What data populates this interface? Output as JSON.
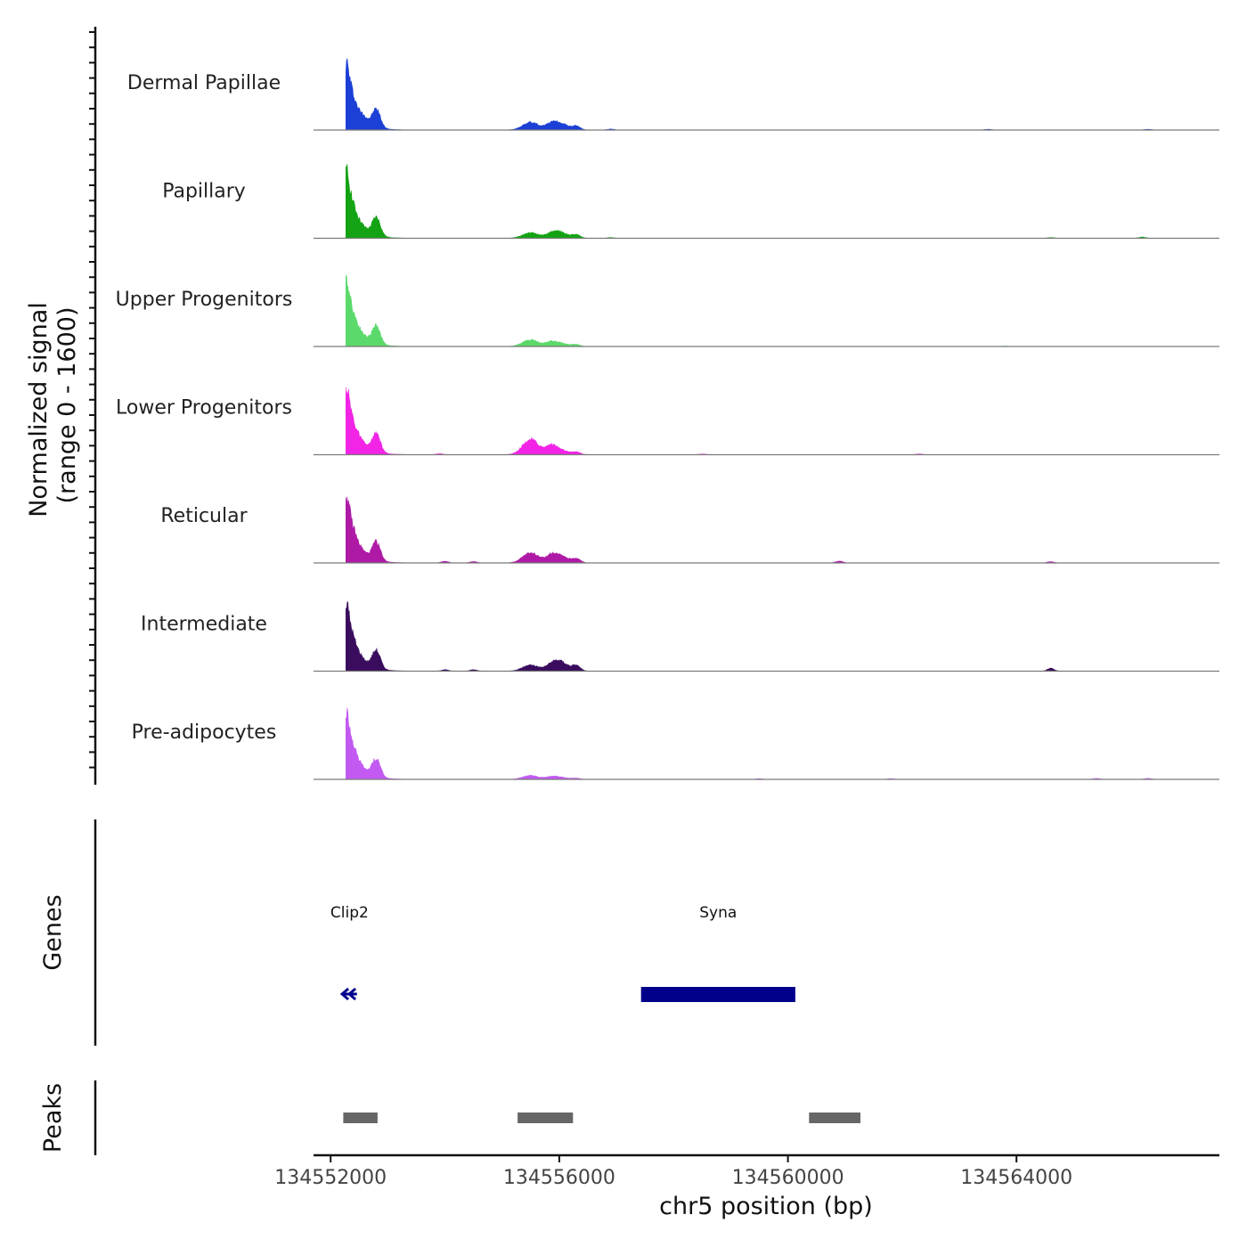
{
  "chart_data": {
    "type": "area",
    "title": "",
    "ylabel": "Normalized signal",
    "ylabel_range": "(range 0 - 1600)",
    "xlabel": "chr5 position (bp)",
    "xlim": [
      134551700,
      134567550
    ],
    "ylim": [
      0,
      1600
    ],
    "x_ticks": [
      {
        "value": 134552000,
        "label": "134552000"
      },
      {
        "value": 134556000,
        "label": "134556000"
      },
      {
        "value": 134560000,
        "label": "134560000"
      },
      {
        "value": 134564000,
        "label": "134564000"
      }
    ],
    "peak_profile": [
      {
        "pos": 134552280,
        "h": 1500
      },
      {
        "pos": 134552800,
        "h": 370
      },
      {
        "pos": 134555500,
        "h": 160
      },
      {
        "pos": 134556000,
        "h": 150
      }
    ],
    "series": [
      {
        "name": "Dermal Papillae",
        "color": "#1C3FD6",
        "scales": [
          1.0,
          1.0,
          1.0,
          1.0
        ],
        "minor": [
          {
            "pos": 134552600,
            "h": 60
          },
          {
            "pos": 134556900,
            "h": 20
          },
          {
            "pos": 134563500,
            "h": 15
          },
          {
            "pos": 134566300,
            "h": 15
          }
        ]
      },
      {
        "name": "Papillary",
        "color": "#14A314",
        "scales": [
          1.0,
          1.0,
          0.7,
          0.9
        ],
        "minor": [
          {
            "pos": 134556900,
            "h": 15
          },
          {
            "pos": 134564600,
            "h": 15
          },
          {
            "pos": 134566200,
            "h": 25
          }
        ]
      },
      {
        "name": "Upper Progenitors",
        "color": "#5BD96A",
        "scales": [
          1.0,
          1.0,
          0.9,
          0.5
        ],
        "minor": [
          {
            "pos": 134563800,
            "h": 10
          }
        ]
      },
      {
        "name": "Lower Progenitors",
        "color": "#F224E5",
        "scales": [
          1.0,
          1.0,
          2.0,
          0.7
        ],
        "minor": [
          {
            "pos": 134553900,
            "h": 20
          },
          {
            "pos": 134558500,
            "h": 15
          },
          {
            "pos": 134562300,
            "h": 15
          }
        ]
      },
      {
        "name": "Reticular",
        "color": "#AE1AA6",
        "scales": [
          1.0,
          1.0,
          1.3,
          1.1
        ],
        "minor": [
          {
            "pos": 134554000,
            "h": 35
          },
          {
            "pos": 134554500,
            "h": 30
          },
          {
            "pos": 134560900,
            "h": 40
          },
          {
            "pos": 134564600,
            "h": 25
          }
        ]
      },
      {
        "name": "Intermediate",
        "color": "#3A0C5E",
        "scales": [
          1.0,
          1.0,
          0.8,
          1.4
        ],
        "minor": [
          {
            "pos": 134554000,
            "h": 30
          },
          {
            "pos": 134554500,
            "h": 30
          },
          {
            "pos": 134564600,
            "h": 60
          }
        ]
      },
      {
        "name": "Pre-adipocytes",
        "color": "#C25AF2",
        "scales": [
          1.0,
          1.0,
          0.5,
          0.3
        ],
        "minor": [
          {
            "pos": 134559500,
            "h": 15
          },
          {
            "pos": 134561800,
            "h": 15
          },
          {
            "pos": 134565400,
            "h": 20
          },
          {
            "pos": 134566300,
            "h": 20
          }
        ]
      }
    ],
    "genes_title": "Genes",
    "genes": [
      {
        "name": "Clip2",
        "start": 134552200,
        "end": 134552460,
        "strand": "-"
      },
      {
        "name": "Syna",
        "start": 134557430,
        "end": 134560130,
        "strand": "-"
      }
    ],
    "peaks_title": "Peaks",
    "peaks": [
      {
        "start": 134552220,
        "end": 134552820
      },
      {
        "start": 134555270,
        "end": 134556240
      },
      {
        "start": 134560370,
        "end": 134561270
      }
    ],
    "colors": {
      "gene": "#00008B",
      "peak": "#666666",
      "baseline": "#7a7a7a"
    }
  }
}
